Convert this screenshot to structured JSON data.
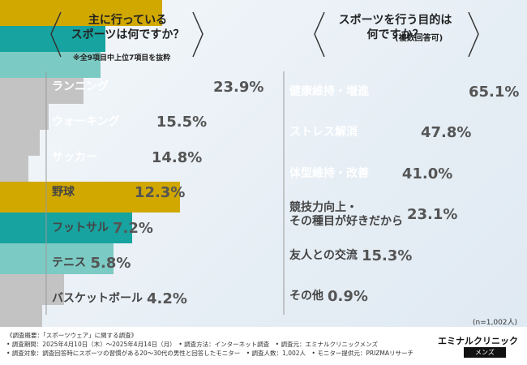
{
  "chart_data": [
    {
      "type": "bar",
      "orientation": "horizontal",
      "title": "主に行っている\nスポーツは何ですか？",
      "note": "※全9項目中上位7項目を抜粋",
      "categories": [
        "ランニング",
        "ウォーキング",
        "サッカー",
        "野球",
        "フットサル",
        "テニス",
        "バスケットボール"
      ],
      "values": [
        23.9,
        15.5,
        14.8,
        12.3,
        7.2,
        5.8,
        4.2
      ],
      "value_labels": [
        "23.9%",
        "15.5%",
        "14.8%",
        "12.3%",
        "7.2%",
        "5.8%",
        "4.2%"
      ],
      "colors": [
        "#d1a800",
        "#17a39f",
        "#7ccac4",
        "#c3c3c3",
        "#c3c3c3",
        "#c3c3c3",
        "#c3c3c3"
      ],
      "label_colors": [
        "#ffffff",
        "#ffffff",
        "#ffffff",
        "#444444",
        "#444444",
        "#444444",
        "#444444"
      ]
    },
    {
      "type": "bar",
      "orientation": "horizontal",
      "title": "スポーツを行う目的は\n何ですか？",
      "subtitle": "(複数回答可)",
      "note": "(n=1,002人)",
      "categories": [
        "健康維持・増進",
        "ストレス解消",
        "体型維持・改善",
        "競技力向上・\nその種目が好きだから",
        "友人との交流",
        "その他"
      ],
      "values": [
        65.1,
        47.8,
        41.0,
        23.1,
        15.3,
        0.9
      ],
      "value_labels": [
        "65.1%",
        "47.8%",
        "41.0%",
        "23.1%",
        "15.3%",
        "0.9%"
      ],
      "colors": [
        "#d1a800",
        "#17a39f",
        "#7ccac4",
        "#c3c3c3",
        "#c3c3c3",
        "#c3c3c3"
      ],
      "label_colors": [
        "#ffffff",
        "#ffffff",
        "#ffffff",
        "#444444",
        "#444444",
        "#444444"
      ]
    }
  ],
  "footer": [
    "《調査概要：「スポーツウェア」に関する調査》",
    "• 調査期間：2025年4月10日（木）～2025年4月14日（月）　• 調査方法：インターネット調査　• 調査元：エミナルクリニックメンズ",
    "• 調査対象：調査回答時にスポーツの習慣がある20～30代の男性と回答したモニター　• 調査人数：1,002人　• モニター提供元：PRIZMAリサーチ"
  ],
  "logo": {
    "name": "エミナルクリニック",
    "sub": "メンズ"
  }
}
